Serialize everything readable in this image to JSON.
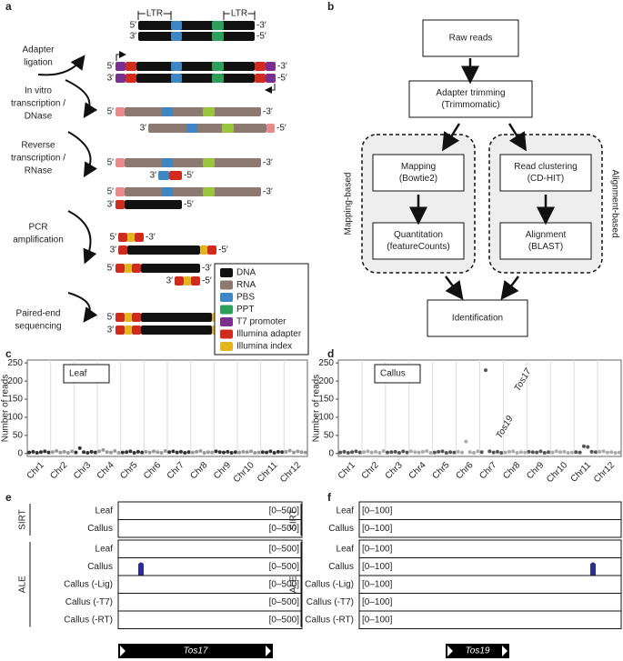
{
  "panel_labels": [
    "a",
    "b",
    "c",
    "d",
    "e",
    "f"
  ],
  "panel_a": {
    "ltr": [
      "LTR",
      "LTR"
    ],
    "steps": [
      [
        "Adapter",
        "ligation"
      ],
      [
        "In vitro",
        "transcription /",
        "DNase"
      ],
      [
        "Reverse",
        "transcription /",
        "RNase"
      ],
      [
        "PCR",
        "amplification"
      ],
      [
        "Paired-end",
        "sequencing"
      ]
    ],
    "strands": [
      [
        "5′",
        "-3′"
      ],
      [
        "3′",
        "-5′"
      ],
      [
        "5′",
        "-3′"
      ],
      [
        "3′",
        "-5′"
      ],
      [
        "5′",
        "-3′"
      ],
      [
        "3′",
        "-5′"
      ],
      [
        "5′",
        "-3′"
      ],
      [
        "3′",
        "-5′"
      ],
      [
        "5′",
        "-3′"
      ],
      [
        "3′",
        "-5′"
      ],
      [
        "5′",
        "-3′"
      ],
      [
        "3′",
        "-5′"
      ],
      [
        "5′",
        "-3′"
      ],
      [
        "3′",
        "-5′"
      ],
      [
        "5′",
        "-3′"
      ],
      [
        "3′",
        "-5′"
      ]
    ],
    "legend": [
      {
        "label": "DNA",
        "color": "#111111"
      },
      {
        "label": "RNA",
        "color": "#8c7a72"
      },
      {
        "label": "PBS",
        "color": "#3f86c4"
      },
      {
        "label": "PPT",
        "color": "#2e9e5b"
      },
      {
        "label": "T7 promoter",
        "color": "#7a2f8f"
      },
      {
        "label": "Illumina adapter",
        "color": "#cf2b1f"
      },
      {
        "label": "Illumina index",
        "color": "#e3b51f"
      }
    ]
  },
  "panel_b": {
    "nodes": [
      [
        "Raw reads"
      ],
      [
        "Adapter trimming",
        "(Trimmomatic)"
      ],
      [
        "Mapping",
        "(Bowtie2)"
      ],
      [
        "Quantitation",
        "(featureCounts)"
      ],
      [
        "Read clustering",
        "(CD-HIT)"
      ],
      [
        "Alignment",
        "(BLAST)"
      ],
      [
        "Identification"
      ]
    ],
    "groups": [
      "Mapping-based",
      "Alignment-based"
    ]
  },
  "chart_data": [
    {
      "type": "scatter",
      "sample_label": "Leaf",
      "y_label": "Number of reads",
      "categories": [
        "Chr1",
        "Chr2",
        "Chr3",
        "Chr4",
        "Chr5",
        "Chr6",
        "Chr7",
        "Chr8",
        "Chr9",
        "Chr10",
        "Chr11",
        "Chr12"
      ],
      "values": [
        [
          3,
          5,
          2,
          4,
          6,
          3
        ],
        [
          4,
          7,
          3,
          5,
          2,
          6
        ],
        [
          3,
          15,
          4,
          2,
          5,
          3
        ],
        [
          6,
          10,
          4,
          3,
          7,
          2
        ],
        [
          3,
          4,
          6,
          2,
          5,
          3
        ],
        [
          5,
          3,
          6,
          4,
          2,
          7
        ],
        [
          4,
          6,
          3,
          5,
          2,
          4
        ],
        [
          3,
          5,
          7,
          2,
          4,
          3
        ],
        [
          6,
          4,
          3,
          5,
          2,
          4
        ],
        [
          3,
          5,
          4,
          6,
          2,
          3
        ],
        [
          4,
          3,
          6,
          2,
          5,
          4
        ],
        [
          5,
          8,
          3,
          6,
          4,
          3
        ]
      ],
      "colors": [
        "#333333",
        "#999999"
      ],
      "ylim": [
        -8,
        258
      ],
      "yticks": [
        0,
        50,
        100,
        150,
        200,
        250
      ]
    },
    {
      "type": "scatter",
      "sample_label": "Callus",
      "y_label": "Number of reads",
      "categories": [
        "Chr1",
        "Chr2",
        "Chr3",
        "Chr4",
        "Chr5",
        "Chr6",
        "Chr7",
        "Chr8",
        "Chr9",
        "Chr10",
        "Chr11",
        "Chr12"
      ],
      "values": [
        [
          3,
          5,
          2,
          4,
          6,
          3
        ],
        [
          4,
          6,
          3,
          5,
          2,
          7
        ],
        [
          3,
          4,
          5,
          2,
          6,
          3
        ],
        [
          6,
          4,
          3,
          5,
          7,
          2
        ],
        [
          3,
          5,
          6,
          2,
          4,
          3
        ],
        [
          5,
          3,
          33,
          4,
          2,
          6
        ],
        [
          4,
          230,
          6,
          3,
          5,
          2
        ],
        [
          3,
          5,
          6,
          2,
          4,
          3
        ],
        [
          5,
          4,
          3,
          6,
          2,
          4
        ],
        [
          3,
          6,
          4,
          5,
          2,
          3
        ],
        [
          4,
          3,
          20,
          18,
          5,
          4
        ],
        [
          5,
          6,
          3,
          4,
          2,
          3
        ]
      ],
      "colors": [
        "#555555",
        "#aaaaaa"
      ],
      "annotations": [
        "Tos17",
        "Tos19"
      ],
      "ylim": [
        -8,
        258
      ],
      "yticks": [
        0,
        50,
        100,
        150,
        200,
        250
      ]
    }
  ],
  "panel_e": {
    "groups": [
      {
        "name": "SIRT",
        "rows": [
          "Leaf",
          "Callus"
        ]
      },
      {
        "name": "ALE",
        "rows": [
          "Leaf",
          "Callus",
          "Callus (-Lig)",
          "Callus (-T7)",
          "Callus (-RT)"
        ]
      }
    ],
    "range_label": "[0–500]",
    "gene": "Tos17"
  },
  "panel_f": {
    "groups": [
      {
        "name": "SIRT",
        "rows": [
          "Leaf",
          "Callus"
        ]
      },
      {
        "name": "ALE",
        "rows": [
          "Leaf",
          "Callus",
          "Callus (-Lig)",
          "Callus (-T7)",
          "Callus (-RT)"
        ]
      }
    ],
    "range_label": "[0–100]",
    "gene": "Tos19"
  }
}
